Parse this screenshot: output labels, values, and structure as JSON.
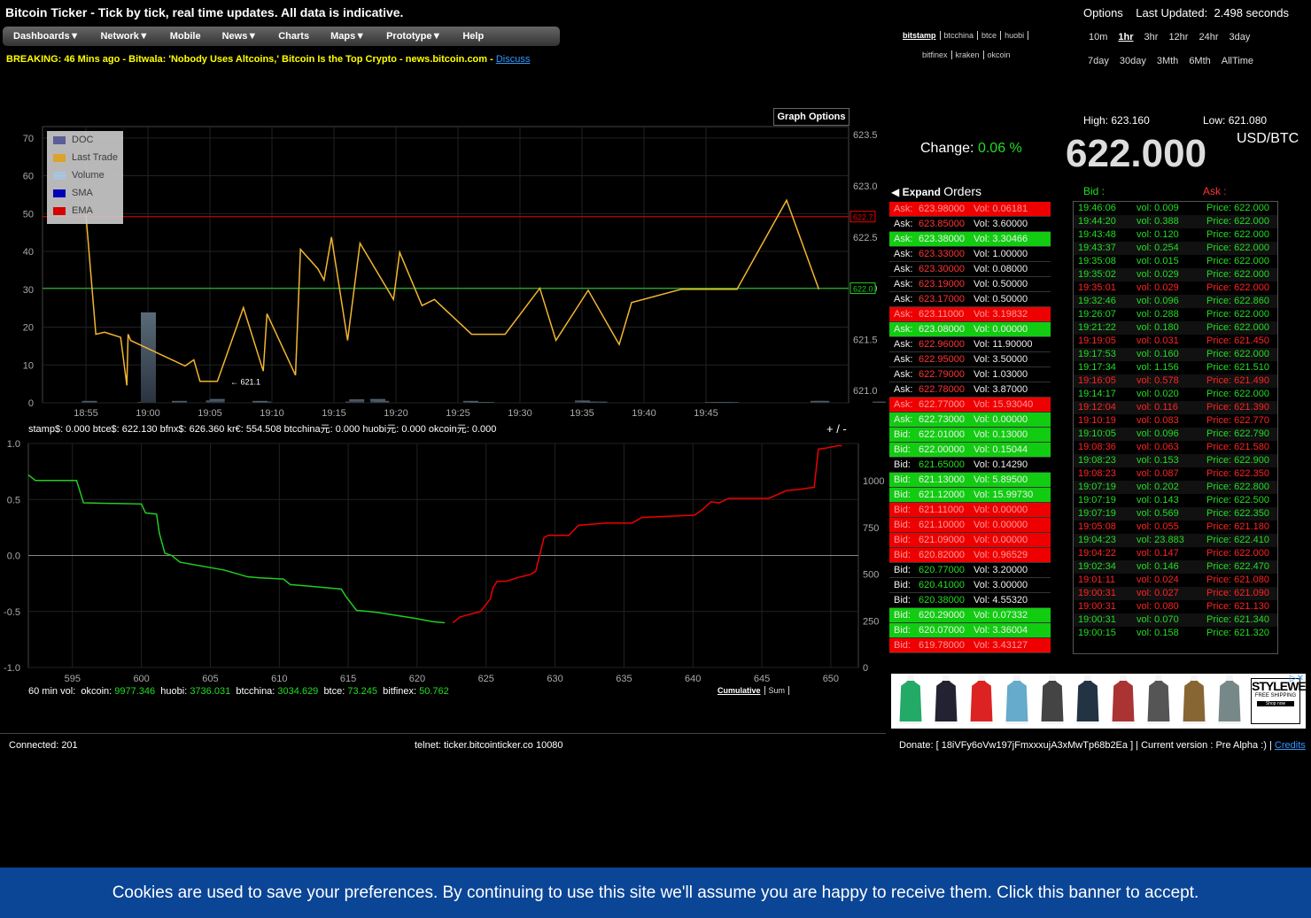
{
  "header": {
    "title": "Bitcoin Ticker - Tick by tick, real time updates. All data is indicative."
  },
  "nav": [
    "Dashboards▼",
    "Network▼",
    "Mobile",
    "News▼",
    "Charts",
    "Maps▼",
    "Prototype▼",
    "Help"
  ],
  "breaking": {
    "text": "BREAKING: 46 Mins ago - Bitwala: 'Nobody Uses Altcoins,' Bitcoin Is the Top Crypto - news.bitcoin.com",
    "sep": " - ",
    "link": "Discuss"
  },
  "exchanges": {
    "row1": [
      "bitstamp",
      "btcchina",
      "btce",
      "huobi"
    ],
    "row2": [
      "bitfinex",
      "kraken",
      "okcoin"
    ],
    "active": "bitstamp"
  },
  "options": {
    "label": "Options",
    "updated_label": "Last Updated:",
    "updated_value": "2.498 seconds"
  },
  "timeframes": {
    "row1": [
      "10m",
      "1hr",
      "3hr",
      "12hr",
      "24hr",
      "3day"
    ],
    "row2": [
      "7day",
      "30day",
      "3Mth",
      "6Mth",
      "AllTime"
    ],
    "active": "1hr"
  },
  "graph_options_label": "Graph Options",
  "legend": [
    {
      "name": "DOC",
      "color": "#6666aa"
    },
    {
      "name": "Last Trade",
      "color": "#f2b630"
    },
    {
      "name": "Volume",
      "color": "#bcd8f2"
    },
    {
      "name": "SMA",
      "color": "#0000cc"
    },
    {
      "name": "EMA",
      "color": "#ee0000"
    }
  ],
  "price_bar": "stamp$: 0.000  btce$: 622.130  bfnx$: 626.360  kr€: 554.508  btcchina元: 0.000  huobi元: 0.000  okcoin元: 0.000",
  "plus_minus": "+ / -",
  "volume_line": {
    "label": "60 min vol:",
    "items": [
      {
        "ex": "okcoin:",
        "v": "9977.346"
      },
      {
        "ex": "huobi:",
        "v": "3736.031"
      },
      {
        "ex": "btcchina:",
        "v": "3034.629"
      },
      {
        "ex": "btce:",
        "v": "73.245"
      },
      {
        "ex": "bitfinex:",
        "v": "50.762"
      }
    ]
  },
  "cum_tabs": [
    "Cumulative",
    "Sum"
  ],
  "stats": {
    "high_label": "High:",
    "high": "623.160",
    "low_label": "Low:",
    "low": "621.080",
    "change_label": "Change:",
    "change": "0.06 %",
    "price": "622.000",
    "currency": "USD/BTC"
  },
  "orders": {
    "expand": "◀ Expand",
    "title": "Orders",
    "bid_head": "Bid  :",
    "ask_head": "Ask :"
  },
  "order_book": [
    {
      "side": "Ask:",
      "price": "623.98000",
      "vol": "Vol: 0.06181",
      "style": "red"
    },
    {
      "side": "Ask:",
      "price": "623.85000",
      "vol": "Vol: 3.60000",
      "style": "plain"
    },
    {
      "side": "Ask:",
      "price": "623.38000",
      "vol": "Vol: 3.30466",
      "style": "green"
    },
    {
      "side": "Ask:",
      "price": "623.33000",
      "vol": "Vol: 1.00000",
      "style": "plain"
    },
    {
      "side": "Ask:",
      "price": "623.30000",
      "vol": "Vol: 0.08000",
      "style": "plain"
    },
    {
      "side": "Ask:",
      "price": "623.19000",
      "vol": "Vol: 0.50000",
      "style": "plain"
    },
    {
      "side": "Ask:",
      "price": "623.17000",
      "vol": "Vol: 0.50000",
      "style": "plain"
    },
    {
      "side": "Ask:",
      "price": "623.11000",
      "vol": "Vol: 3.19832",
      "style": "red"
    },
    {
      "side": "Ask:",
      "price": "623.08000",
      "vol": "Vol: 0.00000",
      "style": "green"
    },
    {
      "side": "Ask:",
      "price": "622.96000",
      "vol": "Vol: 11.90000",
      "style": "plain"
    },
    {
      "side": "Ask:",
      "price": "622.95000",
      "vol": "Vol: 3.50000",
      "style": "plain"
    },
    {
      "side": "Ask:",
      "price": "622.79000",
      "vol": "Vol: 1.03000",
      "style": "plain"
    },
    {
      "side": "Ask:",
      "price": "622.78000",
      "vol": "Vol: 3.87000",
      "style": "plain"
    },
    {
      "side": "Ask:",
      "price": "622.77000",
      "vol": "Vol: 15.93040",
      "style": "red"
    },
    {
      "side": "Ask:",
      "price": "622.73000",
      "vol": "Vol: 0.00000",
      "style": "green"
    },
    {
      "side": "Bid:",
      "price": "622.01000",
      "vol": "Vol: 0.13000",
      "style": "green"
    },
    {
      "side": "Bid:",
      "price": "622.00000",
      "vol": "Vol: 0.15044",
      "style": "green"
    },
    {
      "side": "Bid:",
      "price": "621.65000",
      "vol": "Vol: 0.14290",
      "style": "plain"
    },
    {
      "side": "Bid:",
      "price": "621.13000",
      "vol": "Vol: 5.89500",
      "style": "green"
    },
    {
      "side": "Bid:",
      "price": "621.12000",
      "vol": "Vol: 15.99730",
      "style": "green"
    },
    {
      "side": "Bid:",
      "price": "621.11000",
      "vol": "Vol: 0.00000",
      "style": "red"
    },
    {
      "side": "Bid:",
      "price": "621.10000",
      "vol": "Vol: 0.00000",
      "style": "red"
    },
    {
      "side": "Bid:",
      "price": "621.09000",
      "vol": "Vol: 0.00000",
      "style": "red"
    },
    {
      "side": "Bid:",
      "price": "620.82000",
      "vol": "Vol: 0.96529",
      "style": "red"
    },
    {
      "side": "Bid:",
      "price": "620.77000",
      "vol": "Vol: 3.20000",
      "style": "plain"
    },
    {
      "side": "Bid:",
      "price": "620.41000",
      "vol": "Vol: 3.00000",
      "style": "plain"
    },
    {
      "side": "Bid:",
      "price": "620.38000",
      "vol": "Vol: 4.55320",
      "style": "plain"
    },
    {
      "side": "Bid:",
      "price": "620.29000",
      "vol": "Vol: 0.07332",
      "style": "green"
    },
    {
      "side": "Bid:",
      "price": "620.07000",
      "vol": "Vol: 3.36004",
      "style": "green"
    },
    {
      "side": "Bid:",
      "price": "619.78000",
      "vol": "Vol: 3.43127",
      "style": "red"
    }
  ],
  "trades": [
    {
      "t": "19:46:06",
      "v": "vol: 0.009",
      "p": "Price: 622.000",
      "s": "buy"
    },
    {
      "t": "19:44:20",
      "v": "vol: 0.388",
      "p": "Price: 622.000",
      "s": "buy"
    },
    {
      "t": "19:43:48",
      "v": "vol: 0.120",
      "p": "Price: 622.000",
      "s": "buy"
    },
    {
      "t": "19:43:37",
      "v": "vol: 0.254",
      "p": "Price: 622.000",
      "s": "buy"
    },
    {
      "t": "19:35:08",
      "v": "vol: 0.015",
      "p": "Price: 622.000",
      "s": "buy"
    },
    {
      "t": "19:35:02",
      "v": "vol: 0.029",
      "p": "Price: 622.000",
      "s": "buy"
    },
    {
      "t": "19:35:01",
      "v": "vol: 0.029",
      "p": "Price: 622.000",
      "s": "sell"
    },
    {
      "t": "19:32:46",
      "v": "vol: 0.096",
      "p": "Price: 622.860",
      "s": "buy"
    },
    {
      "t": "19:26:07",
      "v": "vol: 0.288",
      "p": "Price: 622.000",
      "s": "buy"
    },
    {
      "t": "19:21:22",
      "v": "vol: 0.180",
      "p": "Price: 622.000",
      "s": "buy"
    },
    {
      "t": "19:19:05",
      "v": "vol: 0.031",
      "p": "Price: 621.450",
      "s": "sell"
    },
    {
      "t": "19:17:53",
      "v": "vol: 0.160",
      "p": "Price: 622.000",
      "s": "buy"
    },
    {
      "t": "19:17:34",
      "v": "vol: 1.156",
      "p": "Price: 621.510",
      "s": "buy"
    },
    {
      "t": "19:16:05",
      "v": "vol: 0.578",
      "p": "Price: 621.490",
      "s": "sell"
    },
    {
      "t": "19:14:17",
      "v": "vol: 0.020",
      "p": "Price: 622.000",
      "s": "buy"
    },
    {
      "t": "19:12:04",
      "v": "vol: 0.116",
      "p": "Price: 621.390",
      "s": "sell"
    },
    {
      "t": "19:10:19",
      "v": "vol: 0.083",
      "p": "Price: 622.770",
      "s": "sell"
    },
    {
      "t": "19:10:05",
      "v": "vol: 0.096",
      "p": "Price: 622.790",
      "s": "buy"
    },
    {
      "t": "19:08:36",
      "v": "vol: 0.063",
      "p": "Price: 621.580",
      "s": "sell"
    },
    {
      "t": "19:08:23",
      "v": "vol: 0.153",
      "p": "Price: 622.900",
      "s": "buy"
    },
    {
      "t": "19:08:23",
      "v": "vol: 0.087",
      "p": "Price: 622.350",
      "s": "sell"
    },
    {
      "t": "19:07:19",
      "v": "vol: 0.202",
      "p": "Price: 622.800",
      "s": "buy"
    },
    {
      "t": "19:07:19",
      "v": "vol: 0.143",
      "p": "Price: 622.500",
      "s": "buy"
    },
    {
      "t": "19:07:19",
      "v": "vol: 0.569",
      "p": "Price: 622.350",
      "s": "buy"
    },
    {
      "t": "19:05:08",
      "v": "vol: 0.055",
      "p": "Price: 621.180",
      "s": "sell"
    },
    {
      "t": "19:04:23",
      "v": "vol: 23.883",
      "p": "Price: 622.410",
      "s": "buy"
    },
    {
      "t": "19:04:22",
      "v": "vol: 0.147",
      "p": "Price: 622.000",
      "s": "sell"
    },
    {
      "t": "19:02:34",
      "v": "vol: 0.146",
      "p": "Price: 622.470",
      "s": "buy"
    },
    {
      "t": "19:01:11",
      "v": "vol: 0.024",
      "p": "Price: 621.080",
      "s": "sell"
    },
    {
      "t": "19:00:31",
      "v": "vol: 0.027",
      "p": "Price: 621.090",
      "s": "sell"
    },
    {
      "t": "19:00:31",
      "v": "vol: 0.080",
      "p": "Price: 621.130",
      "s": "sell"
    },
    {
      "t": "19:00:31",
      "v": "vol: 0.070",
      "p": "Price: 621.340",
      "s": "buy"
    },
    {
      "t": "19:00:15",
      "v": "vol: 0.158",
      "p": "Price: 621.320",
      "s": "buy"
    }
  ],
  "ad": {
    "brand": "STYLEWE",
    "sub": "FREE SHIPPING",
    "btn": "Shop now",
    "close": "▷✕",
    "figure_colors": [
      "#2a6",
      "#223",
      "#d22",
      "#6ac",
      "#444",
      "#234",
      "#a33",
      "#555",
      "#863",
      "#788",
      "#ccd",
      "#a44"
    ]
  },
  "footer": {
    "connected": "Connected:  201",
    "telnet": "telnet: ticker.bitcointicker.co 10080",
    "donate": "Donate: [ 18iVFy6oVw197jFmxxxujA3xMwTp68b2Ea ] | Current version : Pre Alpha :) | ",
    "credits": "Credits"
  },
  "cookie": "Cookies are used to save your preferences. By continuing to use this site we'll assume you are happy to receive them. Click this banner to accept.",
  "chart_data": [
    {
      "type": "line",
      "title": "",
      "x_ticks": [
        "18:55",
        "19:00",
        "19:05",
        "19:10",
        "19:15",
        "19:20",
        "19:25",
        "19:30",
        "19:35",
        "19:40",
        "19:45"
      ],
      "y_left_ticks": [
        0,
        10,
        20,
        30,
        40,
        50,
        60,
        70
      ],
      "y_right_ticks": [
        "621.0",
        "621.5",
        "622.0",
        "622.5",
        "623.0",
        "623.5"
      ],
      "ylim_price": [
        620.88,
        623.58
      ],
      "ylim_left": [
        0,
        73
      ],
      "series": [
        {
          "name": "Last Trade",
          "color": "#f2b630",
          "x_minutes": [
            0,
            0.8,
            1.5,
            2.8,
            3.3,
            3.4,
            3.6,
            8.0,
            8.7,
            9.2,
            10.6,
            12.7,
            14.3,
            14.6,
            16.9,
            17.3,
            18.7,
            19.2,
            19.8,
            21.1,
            22.1,
            24.8,
            25.3,
            27.1,
            28.1,
            31.1,
            33.8,
            36.6,
            37.9,
            40.5,
            43.0,
            44.0,
            48.0,
            52.5,
            56.5,
            59.1
          ],
          "price": [
            622.72,
            621.55,
            621.57,
            621.52,
            621.05,
            621.55,
            621.49,
            621.24,
            621.3,
            621.09,
            621.09,
            621.81,
            621.19,
            621.75,
            621.15,
            622.38,
            622.19,
            622.08,
            622.5,
            621.49,
            622.44,
            621.89,
            622.35,
            621.83,
            621.89,
            621.55,
            621.55,
            622.0,
            621.49,
            621.98,
            621.45,
            621.86,
            621.99,
            621.99,
            622.86,
            621.99
          ]
        },
        {
          "name": "EMA",
          "color": "#ee0000",
          "level": 622.7
        },
        {
          "name": "SMA",
          "color": "#22cc22",
          "level": 622.0
        }
      ],
      "volume": {
        "name": "Volume",
        "x_minutes": [
          0.5,
          9.5,
          10.0,
          15,
          20.5,
          21.1,
          28,
          28.6,
          43,
          43.6,
          47,
          47.6,
          62,
          63,
          64,
          64.6,
          80,
          81,
          82,
          82.8,
          101,
          102,
          103,
          104,
          118,
          118.6,
          128,
          128.6
        ],
        "values": [
          0.5,
          0.2,
          23.9,
          0.5,
          0.6,
          1,
          0.5,
          0.3,
          0.3,
          0.9,
          1,
          0.5,
          0.5,
          0.2,
          0.2,
          0.2,
          0.6,
          0.3,
          0.2,
          0.3,
          0.2,
          0.2,
          0.2,
          0.2,
          0.5,
          0.5,
          0.3,
          0.2
        ]
      },
      "annotations": [
        {
          "text": "621.1",
          "x_minute": 11.5,
          "price": 621.09
        },
        {
          "text": "622.7",
          "marker": "EMA"
        },
        {
          "text": "622.0",
          "marker": "SMA"
        }
      ]
    },
    {
      "type": "area",
      "title": "",
      "x_ticks": [
        "595",
        "600",
        "605",
        "610",
        "615",
        "620",
        "625",
        "630",
        "635",
        "640",
        "645",
        "650"
      ],
      "y_left_ticks": [
        "1.0",
        "0.5",
        "0.0",
        "-0.5",
        "-1.0"
      ],
      "y_right_ticks": [
        "1000",
        "750",
        "500",
        "250",
        "0"
      ],
      "xlim": [
        591.8,
        652
      ],
      "ylim": [
        -1.0,
        1.0
      ],
      "bid_curve": {
        "color": "#22cc22",
        "x": [
          591.8,
          592.3,
          595.3,
          595.8,
          600.0,
          600.3,
          601.1,
          601.3,
          601.7,
          602.2,
          602.8,
          606.0,
          607.7,
          608.6,
          610.3,
          610.8,
          611.8,
          614.5,
          614.8,
          615.6,
          616.5,
          617.2,
          619.8,
          621.1,
          621.9,
          622.0
        ],
        "y": [
          0.72,
          0.67,
          0.67,
          0.47,
          0.46,
          0.38,
          0.37,
          0.2,
          0.02,
          0.0,
          -0.06,
          -0.13,
          -0.19,
          -0.2,
          -0.21,
          -0.26,
          -0.27,
          -0.3,
          -0.36,
          -0.49,
          -0.5,
          -0.51,
          -0.56,
          -0.59,
          -0.6,
          -0.6
        ]
      },
      "ask_curve": {
        "color": "#ee0000",
        "x": [
          622.6,
          623.1,
          624.6,
          625.3,
          625.5,
          625.8,
          626.5,
          627.2,
          628.2,
          628.6,
          629.0,
          629.2,
          629.5,
          631.0,
          631.7,
          633.7,
          635.6,
          636.3,
          640.1,
          640.7,
          641.3,
          641.9,
          642.6,
          645.5,
          646.8,
          647.7,
          648.8,
          649.1,
          649.7,
          650.5,
          650.8
        ],
        "y": [
          -0.6,
          -0.55,
          -0.5,
          -0.39,
          -0.29,
          -0.23,
          -0.23,
          -0.2,
          -0.17,
          -0.14,
          0.06,
          0.16,
          0.18,
          0.18,
          0.27,
          0.29,
          0.29,
          0.34,
          0.36,
          0.41,
          0.48,
          0.47,
          0.51,
          0.51,
          0.58,
          0.59,
          0.61,
          0.95,
          0.96,
          0.98,
          0.98
        ]
      }
    }
  ]
}
